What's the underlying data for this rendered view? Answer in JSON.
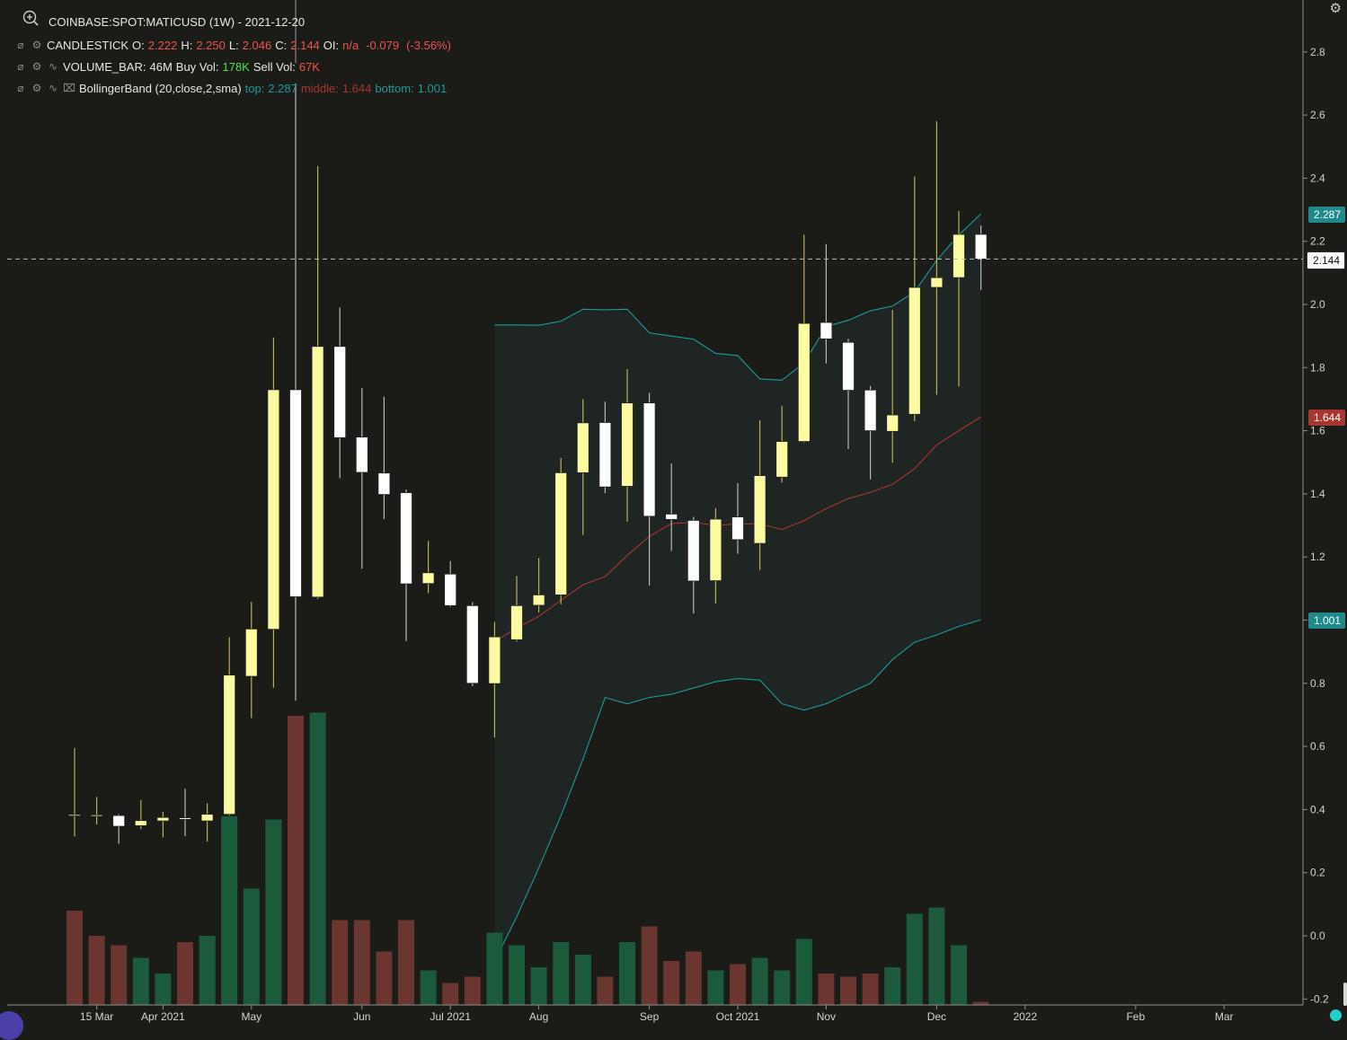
{
  "header": {
    "symbol_line": "COINBASE:SPOT:MATICUSD (1W) - 2021-12-20",
    "candle_name": "CANDLESTICK",
    "o_label": "O:",
    "o_value": "2.222",
    "h_label": "H:",
    "h_value": "2.250",
    "l_label": "L:",
    "l_value": "2.046",
    "c_label": "C:",
    "c_value": "2.144",
    "oi_label": "OI:",
    "oi_value": "n/a",
    "change_value": "-0.079",
    "change_pct": "(-3.56%)",
    "volume_name": "VOLUME_BAR:",
    "volume_value": "46M",
    "buy_label": "Buy Vol:",
    "buy_value": "178K",
    "sell_label": "Sell Vol:",
    "sell_value": "67K",
    "bb_name": "BollingerBand (20,close,2,sma)",
    "bb_top_label": "top:",
    "bb_top_value": "2.287",
    "bb_mid_label": "middle:",
    "bb_mid_value": "1.644",
    "bb_bot_label": "bottom:",
    "bb_bot_value": "1.001"
  },
  "badges": {
    "top": "2.287",
    "last": "2.144",
    "middle": "1.644",
    "bottom": "1.001"
  },
  "colors": {
    "background": "#1b1b18",
    "bull_candle": "#fdfba0",
    "bear_candle": "#ffffff",
    "volume_up": "#1c5a3c",
    "volume_down": "#6b3530",
    "band_line": "#1f9a9a",
    "middle_line": "#a8352f",
    "band_fill": "#1e2522",
    "crosshair": "#bdbdb6"
  },
  "icons": [
    "zoom-in-icon",
    "eye-slash-icon",
    "gear-icon",
    "settings-icon",
    "trash-icon",
    "spark-icon"
  ],
  "chart_data": {
    "type": "candlestick",
    "title": "COINBASE:SPOT:MATICUSD (1W) - 2021-12-20",
    "ylim": [
      -0.2,
      2.9
    ],
    "y_ticks": [
      -0.2,
      0.0,
      0.2,
      0.4,
      0.6,
      0.8,
      1.0,
      1.2,
      1.4,
      1.6,
      1.8,
      2.0,
      2.2,
      2.4,
      2.6,
      2.8
    ],
    "x_tick_labels": [
      "15 Mar",
      "Apr 2021",
      "May",
      "Jun",
      "Jul 2021",
      "Aug",
      "Sep",
      "Oct 2021",
      "Nov",
      "Dec",
      "2022",
      "Feb",
      "Mar"
    ],
    "x_tick_week_index": [
      1,
      4,
      8,
      13,
      17,
      21,
      26,
      30,
      34,
      39,
      43,
      48,
      52
    ],
    "grid": false,
    "crosshair_price": 2.144,
    "candles": [
      {
        "o": 0.384,
        "h": 0.595,
        "l": 0.315,
        "c": 0.384
      },
      {
        "o": 0.383,
        "h": 0.44,
        "l": 0.353,
        "c": 0.383
      },
      {
        "o": 0.381,
        "h": 0.385,
        "l": 0.292,
        "c": 0.347
      },
      {
        "o": 0.349,
        "h": 0.43,
        "l": 0.338,
        "c": 0.365
      },
      {
        "o": 0.364,
        "h": 0.393,
        "l": 0.312,
        "c": 0.375
      },
      {
        "o": 0.374,
        "h": 0.466,
        "l": 0.316,
        "c": 0.369
      },
      {
        "o": 0.364,
        "h": 0.42,
        "l": 0.298,
        "c": 0.385
      },
      {
        "o": 0.385,
        "h": 0.946,
        "l": 0.381,
        "c": 0.826
      },
      {
        "o": 0.822,
        "h": 1.058,
        "l": 0.69,
        "c": 0.972
      },
      {
        "o": 0.971,
        "h": 1.895,
        "l": 0.786,
        "c": 1.73
      },
      {
        "o": 1.73,
        "h": 2.7,
        "l": 0.745,
        "c": 1.074
      },
      {
        "o": 1.073,
        "h": 2.438,
        "l": 1.067,
        "c": 1.867
      },
      {
        "o": 1.867,
        "h": 1.99,
        "l": 1.45,
        "c": 1.578
      },
      {
        "o": 1.58,
        "h": 1.735,
        "l": 1.163,
        "c": 1.468
      },
      {
        "o": 1.466,
        "h": 1.708,
        "l": 1.32,
        "c": 1.398
      },
      {
        "o": 1.404,
        "h": 1.414,
        "l": 0.934,
        "c": 1.115
      },
      {
        "o": 1.116,
        "h": 1.251,
        "l": 1.085,
        "c": 1.15
      },
      {
        "o": 1.146,
        "h": 1.187,
        "l": 1.042,
        "c": 1.046
      },
      {
        "o": 1.046,
        "h": 1.057,
        "l": 0.791,
        "c": 0.8
      },
      {
        "o": 0.799,
        "h": 0.994,
        "l": 0.628,
        "c": 0.947
      },
      {
        "o": 0.938,
        "h": 1.14,
        "l": 0.932,
        "c": 1.046
      },
      {
        "o": 1.047,
        "h": 1.197,
        "l": 1.024,
        "c": 1.08
      },
      {
        "o": 1.08,
        "h": 1.514,
        "l": 1.05,
        "c": 1.467
      },
      {
        "o": 1.467,
        "h": 1.7,
        "l": 1.27,
        "c": 1.625
      },
      {
        "o": 1.626,
        "h": 1.692,
        "l": 1.402,
        "c": 1.422
      },
      {
        "o": 1.424,
        "h": 1.795,
        "l": 1.312,
        "c": 1.688
      },
      {
        "o": 1.688,
        "h": 1.72,
        "l": 1.109,
        "c": 1.329
      },
      {
        "o": 1.336,
        "h": 1.496,
        "l": 1.219,
        "c": 1.319
      },
      {
        "o": 1.316,
        "h": 1.327,
        "l": 1.021,
        "c": 1.124
      },
      {
        "o": 1.125,
        "h": 1.355,
        "l": 1.053,
        "c": 1.32
      },
      {
        "o": 1.327,
        "h": 1.434,
        "l": 1.21,
        "c": 1.255
      },
      {
        "o": 1.243,
        "h": 1.633,
        "l": 1.159,
        "c": 1.458
      },
      {
        "o": 1.453,
        "h": 1.679,
        "l": 1.436,
        "c": 1.566
      },
      {
        "o": 1.566,
        "h": 2.221,
        "l": 1.563,
        "c": 1.94
      },
      {
        "o": 1.943,
        "h": 2.191,
        "l": 1.813,
        "c": 1.891
      },
      {
        "o": 1.88,
        "h": 1.891,
        "l": 1.542,
        "c": 1.728
      },
      {
        "o": 1.729,
        "h": 1.742,
        "l": 1.446,
        "c": 1.6
      },
      {
        "o": 1.598,
        "h": 1.983,
        "l": 1.499,
        "c": 1.65
      },
      {
        "o": 1.652,
        "h": 2.405,
        "l": 1.63,
        "c": 2.054
      },
      {
        "o": 2.054,
        "h": 2.58,
        "l": 1.714,
        "c": 2.085
      },
      {
        "o": 2.085,
        "h": 2.296,
        "l": 1.74,
        "c": 2.222
      },
      {
        "o": 2.222,
        "h": 2.25,
        "l": 2.046,
        "c": 2.144
      }
    ],
    "volume": {
      "series_colors": {
        "up": "#1c5a3c",
        "down": "#6b3530"
      },
      "values": [
        0.3,
        0.22,
        0.19,
        0.15,
        0.1,
        0.2,
        0.22,
        0.6,
        0.37,
        0.59,
        0.92,
        0.93,
        0.27,
        0.27,
        0.17,
        0.27,
        0.11,
        0.07,
        0.09,
        0.23,
        0.19,
        0.12,
        0.2,
        0.16,
        0.09,
        0.2,
        0.25,
        0.14,
        0.17,
        0.11,
        0.13,
        0.15,
        0.11,
        0.21,
        0.1,
        0.09,
        0.1,
        0.12,
        0.29,
        0.31,
        0.19,
        0.01
      ],
      "direction": [
        "down",
        "down",
        "down",
        "up",
        "up",
        "down",
        "up",
        "up",
        "up",
        "up",
        "down",
        "up",
        "down",
        "down",
        "down",
        "down",
        "up",
        "down",
        "down",
        "up",
        "up",
        "up",
        "up",
        "up",
        "down",
        "up",
        "down",
        "down",
        "down",
        "up",
        "down",
        "up",
        "up",
        "up",
        "down",
        "down",
        "down",
        "up",
        "up",
        "up",
        "up",
        "down"
      ]
    },
    "bollinger": {
      "start_index": 19,
      "top": [
        1.935,
        1.935,
        1.934,
        1.947,
        1.985,
        1.983,
        1.985,
        1.91,
        1.9,
        1.89,
        1.845,
        1.838,
        1.764,
        1.76,
        1.815,
        1.93,
        1.95,
        1.98,
        1.995,
        2.04,
        2.14,
        2.22,
        2.287
      ],
      "middle": [
        0.932,
        0.975,
        1.012,
        1.063,
        1.112,
        1.138,
        1.205,
        1.265,
        1.306,
        1.31,
        1.3,
        1.305,
        1.305,
        1.287,
        1.315,
        1.353,
        1.385,
        1.405,
        1.43,
        1.48,
        1.555,
        1.6,
        1.644
      ],
      "bottom": [
        -0.08,
        0.06,
        0.215,
        0.38,
        0.56,
        0.755,
        0.735,
        0.755,
        0.765,
        0.785,
        0.805,
        0.815,
        0.81,
        0.735,
        0.715,
        0.735,
        0.768,
        0.8,
        0.875,
        0.93,
        0.953,
        0.98,
        1.001
      ]
    }
  }
}
